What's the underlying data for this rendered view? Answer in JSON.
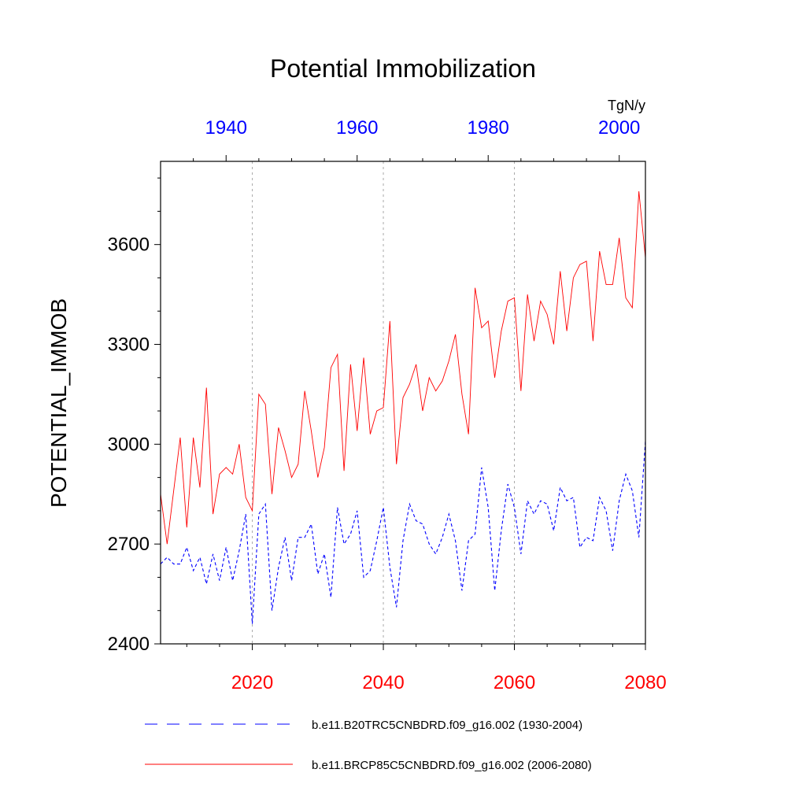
{
  "chart_data": {
    "type": "line",
    "title": "Potential Immobilization",
    "units": "TgN/y",
    "ylabel": "POTENTIAL_IMMOB",
    "ylim": [
      2400,
      3850
    ],
    "yticks": [
      2400,
      2700,
      3000,
      3300,
      3600
    ],
    "bottom_axis": {
      "range": [
        2006,
        2080
      ],
      "ticks": [
        2020,
        2040,
        2060,
        2080
      ],
      "color": "#ff0000"
    },
    "top_axis": {
      "range": [
        1930,
        2004
      ],
      "ticks": [
        1940,
        1960,
        1980,
        2000
      ],
      "color": "#0000ff"
    },
    "grid": "vertical dotted at bottom-axis ticks",
    "series": [
      {
        "name": "b.e11.B20TRC5CNBDRD.f09_g16.002 (1930-2004)",
        "color": "#0000ff",
        "dash": "dashed",
        "x_start": 1930,
        "x_end": 2004,
        "axis": "top",
        "values": [
          2640,
          2660,
          2640,
          2640,
          2690,
          2620,
          2660,
          2580,
          2670,
          2590,
          2690,
          2590,
          2680,
          2790,
          2460,
          2790,
          2820,
          2500,
          2630,
          2720,
          2590,
          2720,
          2720,
          2760,
          2610,
          2670,
          2540,
          2810,
          2700,
          2730,
          2800,
          2600,
          2620,
          2710,
          2810,
          2630,
          2510,
          2710,
          2820,
          2770,
          2760,
          2700,
          2670,
          2720,
          2790,
          2710,
          2560,
          2710,
          2730,
          2930,
          2810,
          2560,
          2740,
          2880,
          2810,
          2670,
          2830,
          2790,
          2830,
          2820,
          2740,
          2870,
          2830,
          2840,
          2690,
          2720,
          2710,
          2840,
          2800,
          2680,
          2830,
          2910,
          2860,
          2720,
          3010
        ]
      },
      {
        "name": "b.e11.BRCP85C5CNBDRD.f09_g16.002 (2006-2080)",
        "color": "#ff0000",
        "dash": "solid",
        "x_start": 2006,
        "x_end": 2080,
        "axis": "bottom",
        "values": [
          2850,
          2700,
          2860,
          3020,
          2750,
          3020,
          2870,
          3170,
          2790,
          2910,
          2930,
          2910,
          3000,
          2840,
          2800,
          3150,
          3120,
          2850,
          3050,
          2980,
          2900,
          2940,
          3160,
          3040,
          2900,
          2990,
          3230,
          3270,
          2920,
          3240,
          3040,
          3260,
          3030,
          3100,
          3110,
          3370,
          2940,
          3140,
          3180,
          3240,
          3100,
          3200,
          3160,
          3190,
          3250,
          3330,
          3150,
          3030,
          3470,
          3350,
          3370,
          3200,
          3340,
          3430,
          3440,
          3160,
          3450,
          3310,
          3430,
          3390,
          3300,
          3520,
          3340,
          3500,
          3540,
          3550,
          3310,
          3580,
          3480,
          3480,
          3620,
          3440,
          3410,
          3760,
          3560
        ]
      }
    ],
    "legend": [
      {
        "label": "b.e11.B20TRC5CNBDRD.f09_g16.002 (1930-2004)",
        "color": "#0000ff",
        "dash": "dashed"
      },
      {
        "label": "b.e11.BRCP85C5CNBDRD.f09_g16.002 (2006-2080)",
        "color": "#ff0000",
        "dash": "solid"
      }
    ]
  }
}
